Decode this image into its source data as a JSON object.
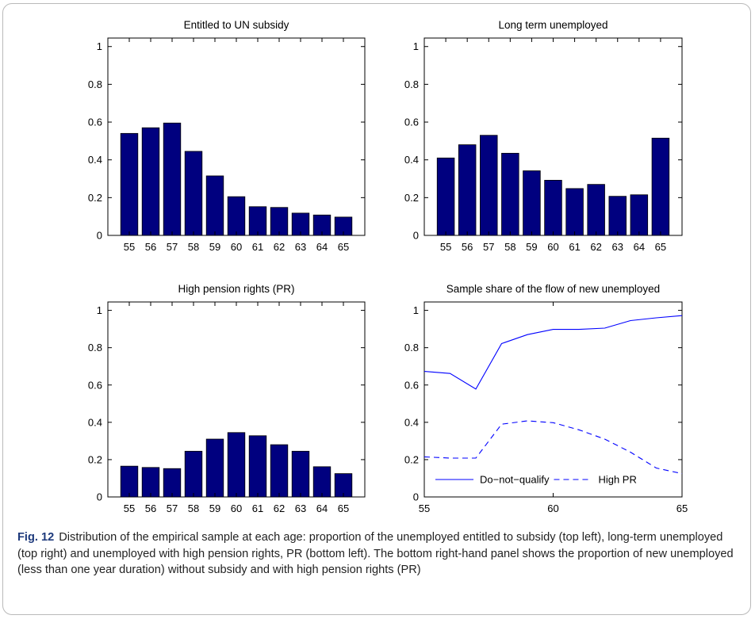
{
  "caption": {
    "label": "Fig. 12",
    "text": "Distribution of the empirical sample at each age: proportion of the unemployed entitled to subsidy (top left), long-term unemployed (top right) and unemployed with high pension rights, PR (bottom left). The bottom right-hand panel shows the proportion of new unemployed (less than one year duration) without subsidy and with high pension rights (PR)"
  },
  "colors": {
    "bar": "#00007f",
    "line": "#0000ff",
    "axis": "#000000"
  },
  "chart_data": [
    {
      "type": "bar",
      "title": "Entitled to UN subsidy",
      "categories": [
        "55",
        "56",
        "57",
        "58",
        "59",
        "60",
        "61",
        "62",
        "63",
        "64",
        "65"
      ],
      "values": [
        0.54,
        0.57,
        0.595,
        0.445,
        0.315,
        0.205,
        0.152,
        0.148,
        0.118,
        0.108,
        0.097
      ],
      "ylim": [
        0,
        1
      ],
      "yticks": [
        "0",
        "0.2",
        "0.4",
        "0.6",
        "0.8",
        "1"
      ]
    },
    {
      "type": "bar",
      "title": "Long term unemployed",
      "categories": [
        "55",
        "56",
        "57",
        "58",
        "59",
        "60",
        "61",
        "62",
        "63",
        "64",
        "65"
      ],
      "values": [
        0.41,
        0.48,
        0.53,
        0.435,
        0.342,
        0.292,
        0.248,
        0.27,
        0.207,
        0.215,
        0.515
      ],
      "ylim": [
        0,
        1
      ],
      "yticks": [
        "0",
        "0.2",
        "0.4",
        "0.6",
        "0.8",
        "1"
      ]
    },
    {
      "type": "bar",
      "title": "High pension rights (PR)",
      "categories": [
        "55",
        "56",
        "57",
        "58",
        "59",
        "60",
        "61",
        "62",
        "63",
        "64",
        "65"
      ],
      "values": [
        0.165,
        0.158,
        0.152,
        0.245,
        0.31,
        0.345,
        0.328,
        0.28,
        0.245,
        0.162,
        0.125
      ],
      "ylim": [
        0,
        1
      ],
      "yticks": [
        "0",
        "0.2",
        "0.4",
        "0.6",
        "0.8",
        "1"
      ]
    },
    {
      "type": "line",
      "title": "Sample share of the flow of new unemployed",
      "x": [
        55,
        56,
        57,
        58,
        59,
        60,
        61,
        62,
        63,
        64,
        65
      ],
      "xlim": [
        55,
        65
      ],
      "ylim": [
        0,
        1
      ],
      "xticks": [
        "55",
        "60",
        "65"
      ],
      "yticks": [
        "0",
        "0.2",
        "0.4",
        "0.6",
        "0.8",
        "1"
      ],
      "series": [
        {
          "name": "Do−not−qualify",
          "style": "solid",
          "values": [
            0.673,
            0.662,
            0.578,
            0.822,
            0.87,
            0.898,
            0.898,
            0.905,
            0.945,
            0.96,
            0.972
          ]
        },
        {
          "name": "High PR",
          "style": "dashed",
          "values": [
            0.215,
            0.208,
            0.208,
            0.39,
            0.408,
            0.398,
            0.36,
            0.31,
            0.24,
            0.155,
            0.125
          ]
        }
      ],
      "legend_position": "bottom"
    }
  ]
}
